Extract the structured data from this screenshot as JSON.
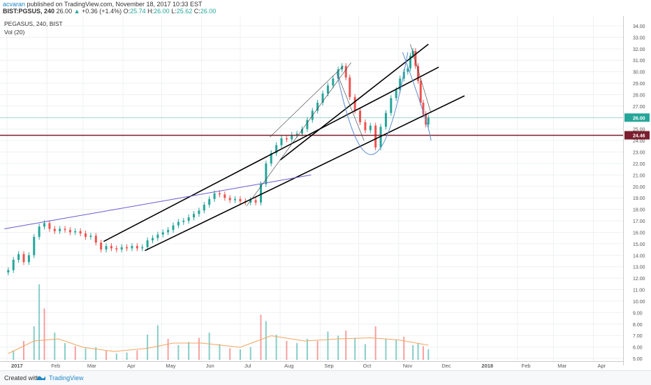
{
  "header": {
    "user": "acvaran",
    "published": "published on TradingView.com, November 18, 2017 10:33 EST",
    "symbol": "BIST:PGSUS, 240",
    "last": "26.00",
    "change": "+0.36 (+1.4%)",
    "o_label": "O:",
    "o_val": "25.74",
    "h_label": "H:",
    "h_val": "26.00",
    "l_label": "L:",
    "l_val": "25.62",
    "c_label": "C:",
    "c_val": "26.00"
  },
  "legend": {
    "line1": "PEGASUS, 240, BIST",
    "line2": "Vol (20)"
  },
  "footer": {
    "created": "Created with",
    "brand": "TradingView"
  },
  "colors": {
    "up": "#26a69a",
    "down": "#ef5350",
    "grid": "#eef0f3",
    "trendline": "#000000",
    "blue_line": "#6a5acd",
    "arc": "#5b8bd0",
    "hline": "#7b1f2e",
    "vol_ma": "#f4a460",
    "last_price_bg": "#26a69a"
  },
  "chart_data": {
    "type": "candlestick",
    "price_axis": {
      "min": 5.0,
      "max": 34.0,
      "ticks": [
        "5.00",
        "6.00",
        "7.00",
        "8.00",
        "9.00",
        "10.00",
        "11.00",
        "12.00",
        "13.00",
        "14.00",
        "15.00",
        "16.00",
        "17.00",
        "18.00",
        "19.00",
        "20.00",
        "21.00",
        "22.00",
        "23.00",
        "24.00",
        "25.00",
        "26.00",
        "27.00",
        "28.00",
        "29.00",
        "30.00",
        "31.00",
        "32.00",
        "33.00",
        "34.00"
      ]
    },
    "time_axis": {
      "start": "2017-01-01",
      "labels": [
        {
          "text": "2017",
          "date": "2017-01-01"
        },
        {
          "text": "Feb",
          "date": "2017-02-01"
        },
        {
          "text": "Mar",
          "date": "2017-03-01"
        },
        {
          "text": "Apr",
          "date": "2017-04-01"
        },
        {
          "text": "May",
          "date": "2017-05-01"
        },
        {
          "text": "Jun",
          "date": "2017-06-01"
        },
        {
          "text": "Jul",
          "date": "2017-07-01"
        },
        {
          "text": "Aug",
          "date": "2017-08-01"
        },
        {
          "text": "Sep",
          "date": "2017-09-01"
        },
        {
          "text": "Oct",
          "date": "2017-10-01"
        },
        {
          "text": "Nov",
          "date": "2017-11-01"
        },
        {
          "text": "Dec",
          "date": "2017-12-01"
        },
        {
          "text": "2018",
          "date": "2018-01-01"
        },
        {
          "text": "Feb",
          "date": "2018-02-01"
        },
        {
          "text": "Mar",
          "date": "2018-03-01"
        },
        {
          "text": "Apr",
          "date": "2018-04-01"
        }
      ]
    },
    "price_series": [
      [
        "2017-01-02",
        12.7
      ],
      [
        "2017-01-06",
        13.6
      ],
      [
        "2017-01-10",
        14.1
      ],
      [
        "2017-01-14",
        13.4
      ],
      [
        "2017-01-18",
        14.0
      ],
      [
        "2017-01-22",
        15.6
      ],
      [
        "2017-01-26",
        16.5
      ],
      [
        "2017-01-30",
        16.8
      ],
      [
        "2017-02-03",
        16.3
      ],
      [
        "2017-02-07",
        16.1
      ],
      [
        "2017-02-11",
        16.3
      ],
      [
        "2017-02-15",
        16.2
      ],
      [
        "2017-02-19",
        16.0
      ],
      [
        "2017-02-23",
        16.1
      ],
      [
        "2017-02-27",
        15.9
      ],
      [
        "2017-03-03",
        15.6
      ],
      [
        "2017-03-07",
        15.7
      ],
      [
        "2017-03-11",
        15.1
      ],
      [
        "2017-03-15",
        14.5
      ],
      [
        "2017-03-19",
        14.8
      ],
      [
        "2017-03-23",
        14.6
      ],
      [
        "2017-03-27",
        14.5
      ],
      [
        "2017-03-31",
        14.7
      ],
      [
        "2017-04-04",
        14.6
      ],
      [
        "2017-04-08",
        14.8
      ],
      [
        "2017-04-12",
        14.6
      ],
      [
        "2017-04-16",
        14.7
      ],
      [
        "2017-04-20",
        15.3
      ],
      [
        "2017-04-24",
        15.5
      ],
      [
        "2017-04-28",
        15.8
      ],
      [
        "2017-05-02",
        16.0
      ],
      [
        "2017-05-06",
        16.2
      ],
      [
        "2017-05-10",
        16.6
      ],
      [
        "2017-05-14",
        16.9
      ],
      [
        "2017-05-18",
        17.0
      ],
      [
        "2017-05-22",
        17.3
      ],
      [
        "2017-05-26",
        17.6
      ],
      [
        "2017-05-30",
        17.9
      ],
      [
        "2017-06-03",
        18.4
      ],
      [
        "2017-06-07",
        18.9
      ],
      [
        "2017-06-11",
        19.4
      ],
      [
        "2017-06-15",
        19.3
      ],
      [
        "2017-06-19",
        19.0
      ],
      [
        "2017-06-23",
        18.8
      ],
      [
        "2017-06-27",
        18.9
      ],
      [
        "2017-07-01",
        18.7
      ],
      [
        "2017-07-05",
        18.6
      ],
      [
        "2017-07-09",
        18.8
      ],
      [
        "2017-07-13",
        18.6
      ],
      [
        "2017-07-17",
        20.2
      ],
      [
        "2017-07-21",
        22.0
      ],
      [
        "2017-07-25",
        22.9
      ],
      [
        "2017-07-29",
        23.6
      ],
      [
        "2017-08-02",
        24.2
      ],
      [
        "2017-08-06",
        24.1
      ],
      [
        "2017-08-10",
        24.5
      ],
      [
        "2017-08-14",
        24.6
      ],
      [
        "2017-08-18",
        25.0
      ],
      [
        "2017-08-22",
        25.8
      ],
      [
        "2017-08-26",
        26.6
      ],
      [
        "2017-08-30",
        27.3
      ],
      [
        "2017-09-03",
        28.1
      ],
      [
        "2017-09-07",
        28.8
      ],
      [
        "2017-09-11",
        29.4
      ],
      [
        "2017-09-15",
        30.2
      ],
      [
        "2017-09-18",
        30.5
      ],
      [
        "2017-09-21",
        29.5
      ],
      [
        "2017-09-24",
        27.8
      ],
      [
        "2017-09-28",
        26.6
      ],
      [
        "2017-10-02",
        25.6
      ],
      [
        "2017-10-06",
        24.9
      ],
      [
        "2017-10-10",
        25.3
      ],
      [
        "2017-10-14",
        23.4
      ],
      [
        "2017-10-18",
        25.2
      ],
      [
        "2017-10-22",
        26.4
      ],
      [
        "2017-10-26",
        27.7
      ],
      [
        "2017-10-30",
        28.4
      ],
      [
        "2017-11-02",
        29.4
      ],
      [
        "2017-11-05",
        30.0
      ],
      [
        "2017-11-08",
        30.3
      ],
      [
        "2017-11-10",
        31.4
      ],
      [
        "2017-11-12",
        31.8
      ],
      [
        "2017-11-14",
        30.5
      ],
      [
        "2017-11-16",
        29.2
      ],
      [
        "2017-11-18",
        27.3
      ],
      [
        "2017-11-20",
        26.3
      ],
      [
        "2017-11-22",
        25.4
      ],
      [
        "2017-11-24",
        26.0
      ]
    ],
    "volume_series": [
      [
        "2017-01-06",
        0.9
      ],
      [
        "2017-01-14",
        1.8
      ],
      [
        "2017-01-22",
        3.2
      ],
      [
        "2017-01-26",
        7.2
      ],
      [
        "2017-01-30",
        4.9
      ],
      [
        "2017-02-07",
        2.6
      ],
      [
        "2017-02-15",
        1.6
      ],
      [
        "2017-02-23",
        1.3
      ],
      [
        "2017-03-03",
        1.1
      ],
      [
        "2017-03-11",
        1.2
      ],
      [
        "2017-03-19",
        0.9
      ],
      [
        "2017-03-27",
        0.6
      ],
      [
        "2017-04-04",
        0.7
      ],
      [
        "2017-04-12",
        0.9
      ],
      [
        "2017-04-20",
        2.4
      ],
      [
        "2017-04-28",
        3.3
      ],
      [
        "2017-05-06",
        2.0
      ],
      [
        "2017-05-14",
        1.4
      ],
      [
        "2017-05-22",
        1.7
      ],
      [
        "2017-05-30",
        2.1
      ],
      [
        "2017-06-07",
        2.6
      ],
      [
        "2017-06-15",
        1.5
      ],
      [
        "2017-06-23",
        1.1
      ],
      [
        "2017-07-01",
        1.0
      ],
      [
        "2017-07-09",
        1.2
      ],
      [
        "2017-07-17",
        4.3
      ],
      [
        "2017-07-21",
        3.7
      ],
      [
        "2017-07-29",
        2.4
      ],
      [
        "2017-08-06",
        1.8
      ],
      [
        "2017-08-14",
        1.6
      ],
      [
        "2017-08-22",
        2.0
      ],
      [
        "2017-08-30",
        1.8
      ],
      [
        "2017-09-07",
        2.7
      ],
      [
        "2017-09-15",
        2.3
      ],
      [
        "2017-09-21",
        2.8
      ],
      [
        "2017-09-28",
        2.1
      ],
      [
        "2017-10-06",
        1.5
      ],
      [
        "2017-10-14",
        3.2
      ],
      [
        "2017-10-22",
        2.0
      ],
      [
        "2017-10-30",
        1.9
      ],
      [
        "2017-11-05",
        2.2
      ],
      [
        "2017-11-12",
        1.4
      ],
      [
        "2017-11-16",
        1.6
      ],
      [
        "2017-11-20",
        1.3
      ],
      [
        "2017-11-24",
        1.0
      ]
    ],
    "volume_ma": [
      [
        "2017-01-02",
        0.6
      ],
      [
        "2017-01-22",
        1.8
      ],
      [
        "2017-02-10",
        2.0
      ],
      [
        "2017-03-01",
        1.2
      ],
      [
        "2017-03-25",
        0.8
      ],
      [
        "2017-04-20",
        1.1
      ],
      [
        "2017-05-10",
        1.6
      ],
      [
        "2017-06-01",
        1.6
      ],
      [
        "2017-07-01",
        1.2
      ],
      [
        "2017-07-25",
        2.3
      ],
      [
        "2017-08-20",
        1.8
      ],
      [
        "2017-09-15",
        2.0
      ],
      [
        "2017-10-10",
        2.1
      ],
      [
        "2017-11-01",
        1.9
      ],
      [
        "2017-11-24",
        1.4
      ]
    ],
    "annotations": {
      "hline_price": 24.46,
      "hline_label": "24.46",
      "last_price_label": "26.00",
      "trendlines": [
        {
          "kind": "black",
          "from": [
            "2017-03-17",
            15.2
          ],
          "to": [
            "2017-12-02",
            30.4
          ]
        },
        {
          "kind": "black",
          "from": [
            "2017-04-18",
            14.4
          ],
          "to": [
            "2017-12-22",
            27.9
          ]
        },
        {
          "kind": "black",
          "from": [
            "2017-08-01",
            22.3
          ],
          "to": [
            "2017-11-24",
            32.4
          ]
        },
        {
          "kind": "blue",
          "from": [
            "2016-12-30",
            16.3
          ],
          "to": [
            "2017-08-25",
            21.0
          ]
        },
        {
          "kind": "thin",
          "from": [
            "2017-07-06",
            18.3
          ],
          "to": [
            "2017-09-25",
            30.8
          ]
        },
        {
          "kind": "thin",
          "from": [
            "2017-07-24",
            24.3
          ],
          "to": [
            "2017-09-19",
            30.5
          ]
        },
        {
          "kind": "thin",
          "from": [
            "2017-09-14",
            29.9
          ],
          "to": [
            "2017-10-05",
            24.0
          ]
        },
        {
          "kind": "thin",
          "from": [
            "2017-11-10",
            32.4
          ],
          "to": [
            "2017-11-26",
            26.4
          ]
        }
      ],
      "arcs": [
        {
          "from": [
            "2017-09-14",
            29.9
          ],
          "bottom": [
            "2017-10-12",
            22.8
          ],
          "to": [
            "2017-11-08",
            31.7
          ]
        },
        {
          "from": [
            "2017-11-04",
            31.7
          ],
          "mid": [
            "2017-11-20",
            26.5
          ],
          "to": [
            "2017-11-26",
            24.0
          ]
        }
      ]
    }
  }
}
